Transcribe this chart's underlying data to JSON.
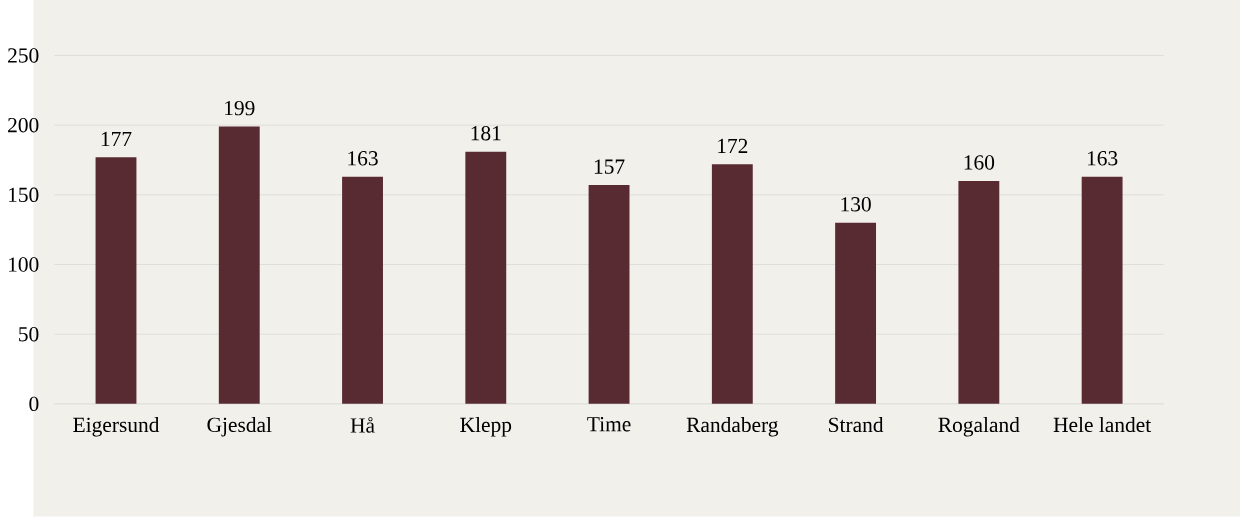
{
  "chart_data": {
    "type": "bar",
    "categories": [
      "Eigersund",
      "Gjesdal",
      "Hå",
      "Klepp",
      "Time",
      "Randaberg",
      "Strand",
      "Rogaland",
      "Hele landet"
    ],
    "values": [
      177,
      199,
      163,
      181,
      157,
      172,
      130,
      160,
      163
    ],
    "color": "#582a32",
    "ylim": [
      0,
      250
    ],
    "yticks": [
      0,
      50,
      100,
      150,
      200,
      250
    ],
    "grid": "y",
    "data_labels": true
  }
}
